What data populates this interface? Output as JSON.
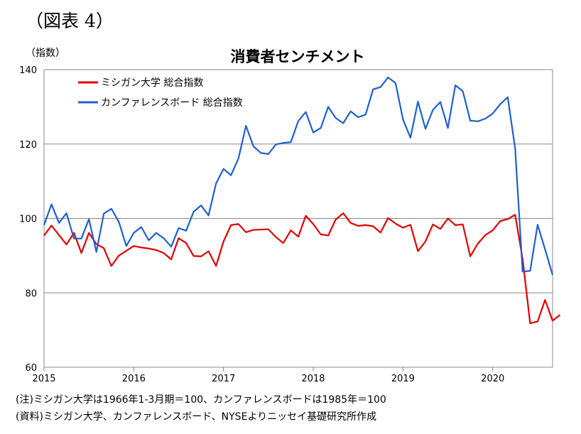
{
  "header": {
    "figure_label": "（図表 4）",
    "unit": "（指数）"
  },
  "chart_data": {
    "type": "line",
    "title": "消費者センチメント",
    "xlabel": "",
    "ylabel": "（指数）",
    "ylim": [
      60,
      140
    ],
    "yticks": [
      60,
      80,
      100,
      120,
      140
    ],
    "xlim": [
      2015.0,
      2020.667
    ],
    "xticks": [
      {
        "value": 2015,
        "label": "2015"
      },
      {
        "value": 2016,
        "label": "2016"
      },
      {
        "value": 2017,
        "label": "2017"
      },
      {
        "value": 2018,
        "label": "2018"
      },
      {
        "value": 2019,
        "label": "2019"
      },
      {
        "value": 2020,
        "label": "2020"
      }
    ],
    "grid": "horizontal",
    "legend_position": "top-left",
    "start": "2015-01",
    "frequency": "monthly",
    "series": [
      {
        "name": "ミシガン大学 総合指数",
        "color": "#e00000",
        "values": [
          95.4,
          98.1,
          95.5,
          93.0,
          96.1,
          90.7,
          96.1,
          93.1,
          92.0,
          87.2,
          90.0,
          91.3,
          92.6,
          92.2,
          91.9,
          91.5,
          90.7,
          89.0,
          94.7,
          93.4,
          89.9,
          89.8,
          91.2,
          87.2,
          93.8,
          98.2,
          98.5,
          96.3,
          96.9,
          97.0,
          97.1,
          95.0,
          93.4,
          96.8,
          95.1,
          100.7,
          98.5,
          95.7,
          95.4,
          99.7,
          101.4,
          98.8,
          98.0,
          98.2,
          97.9,
          96.2,
          100.1,
          98.6,
          97.5,
          98.3,
          91.2,
          93.8,
          98.4,
          97.2,
          100.0,
          98.2,
          98.4,
          89.8,
          93.2,
          95.5,
          96.8,
          99.3,
          99.8,
          101.0,
          89.1,
          71.8,
          72.3,
          78.1,
          72.5,
          74.1
        ]
      },
      {
        "name": "カンファレンスボード 総合指数",
        "color": "#1f5fd0",
        "values": [
          98.2,
          103.8,
          98.8,
          101.4,
          94.6,
          94.6,
          99.8,
          91.0,
          101.3,
          102.6,
          99.1,
          92.6,
          96.1,
          97.7,
          94.1,
          96.1,
          94.7,
          92.4,
          97.4,
          96.7,
          101.8,
          103.5,
          100.8,
          109.4,
          113.3,
          111.6,
          116.1,
          124.9,
          119.4,
          117.6,
          117.3,
          119.9,
          120.3,
          120.5,
          126.2,
          128.6,
          123.1,
          124.3,
          130.0,
          127.0,
          125.6,
          128.8,
          127.2,
          127.9,
          134.7,
          135.3,
          137.9,
          136.4,
          126.6,
          121.7,
          131.4,
          124.1,
          129.2,
          131.3,
          124.3,
          135.8,
          134.2,
          126.3,
          126.1,
          126.8,
          128.2,
          130.7,
          132.6,
          118.8,
          85.7,
          85.9,
          98.3,
          91.7,
          84.8
        ]
      }
    ]
  },
  "notes": [
    "(注)ミシガン大学は1966年1-3月期＝100、カンファレンスボードは1985年＝100",
    "(資料)ミシガン大学、カンファレンスボード、NYSEよりニッセイ基礎研究所作成"
  ]
}
